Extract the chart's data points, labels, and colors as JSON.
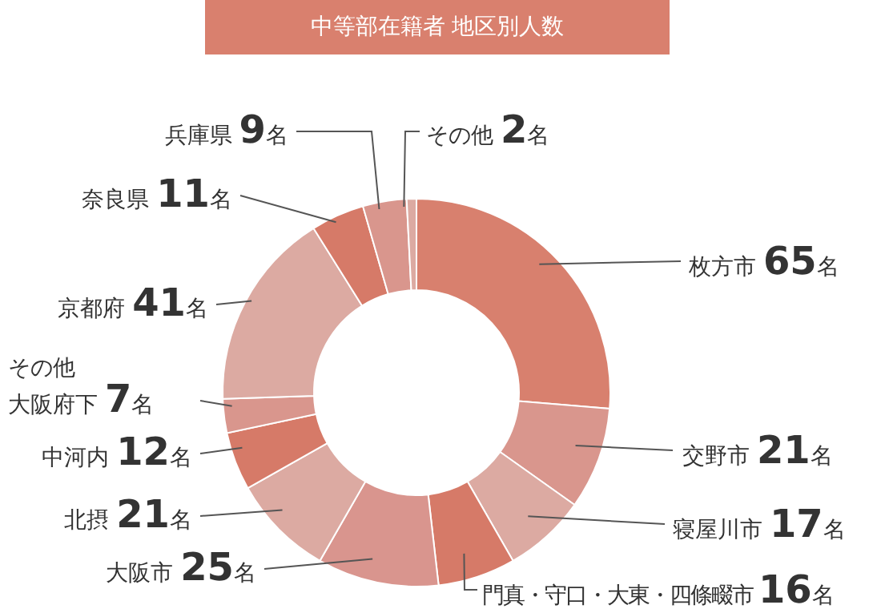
{
  "chart_data": {
    "type": "donut",
    "title": "中等部在籍者 地区別人数",
    "categories": [
      "枚方市",
      "交野市",
      "寝屋川市",
      "門真・守口・大東・四條畷市",
      "大阪市",
      "北摂",
      "中河内",
      "その他大阪府下",
      "京都府",
      "奈良県",
      "兵庫県",
      "その他"
    ],
    "values": [
      65,
      21,
      17,
      16,
      25,
      21,
      12,
      7,
      41,
      11,
      9,
      2
    ],
    "colors": [
      "#d8806e",
      "#d9968d",
      "#dcaaa2",
      "#d67a68",
      "#d9958e",
      "#dcaaa2",
      "#d67a68",
      "#d9968d",
      "#dcaaa2",
      "#d67a68",
      "#d9968d",
      "#dcaaa2"
    ],
    "value_labels": [
      "65名",
      "21名",
      "17名",
      "16名",
      "25名",
      "21名",
      "12名",
      "7名",
      "41名",
      "11名",
      "9名",
      "2名"
    ]
  }
}
